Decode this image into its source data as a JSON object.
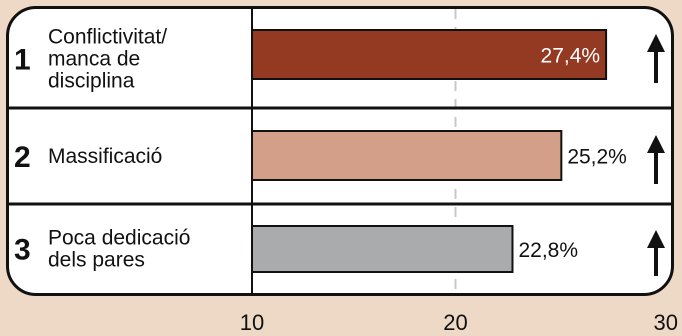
{
  "chart_data": {
    "type": "bar",
    "orientation": "horizontal",
    "title": "",
    "xlabel": "",
    "ylabel": "",
    "xlim": [
      10,
      30
    ],
    "x_ticks": [
      "10",
      "20",
      "30"
    ],
    "grid": "dashed vertical line at 20",
    "categories": [
      {
        "rank": "1",
        "lines": [
          "Conflictivitat/",
          "manca de",
          "disciplina"
        ]
      },
      {
        "rank": "2",
        "lines": [
          "Massificació"
        ]
      },
      {
        "rank": "3",
        "lines": [
          "Poca dedicació",
          "dels pares"
        ]
      }
    ],
    "values": [
      27.4,
      25.2,
      22.8
    ],
    "value_labels": [
      "27,4%",
      "25,2%",
      "22,8%"
    ],
    "trend": [
      "up-arrow-icon",
      "up-arrow-icon",
      "up-arrow-icon"
    ],
    "colors": {
      "bars": [
        "#953a22",
        "#d49f88",
        "#a9abad"
      ],
      "value_text": [
        "#ffffff",
        "#111111",
        "#111111"
      ],
      "background": "#eed9c6",
      "grid": "#c8c8c8"
    }
  }
}
